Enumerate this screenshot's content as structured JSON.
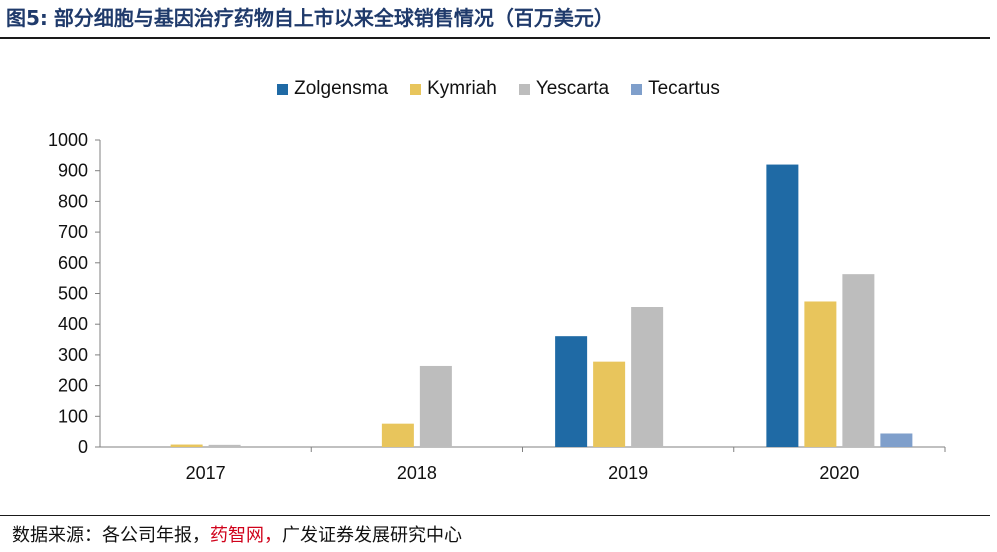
{
  "figure": {
    "label": "图5:",
    "title": "部分细胞与基因治疗药物自上市以来全球销售情况（百万美元）"
  },
  "source": {
    "prefix": "数据来源：各公司年报，",
    "highlight": "药智网，",
    "suffix": "广发证券发展研究中心"
  },
  "chart_data": {
    "type": "bar",
    "categories": [
      "2017",
      "2018",
      "2019",
      "2020"
    ],
    "series": [
      {
        "name": "Zolgensma",
        "color": "#1f6aa5",
        "values": [
          0,
          0,
          361,
          920
        ]
      },
      {
        "name": "Kymriah",
        "color": "#e8c55c",
        "values": [
          8,
          76,
          278,
          474
        ]
      },
      {
        "name": "Yescarta",
        "color": "#bdbdbd",
        "values": [
          7,
          264,
          456,
          563
        ]
      },
      {
        "name": "Tecartus",
        "color": "#7f9fcb",
        "values": [
          0,
          0,
          0,
          44
        ]
      }
    ],
    "ylim": [
      0,
      1000
    ],
    "yticks": [
      "0",
      "100",
      "200",
      "300",
      "400",
      "500",
      "600",
      "700",
      "800",
      "900",
      "1000"
    ],
    "legend_position": "top",
    "grid": false
  }
}
